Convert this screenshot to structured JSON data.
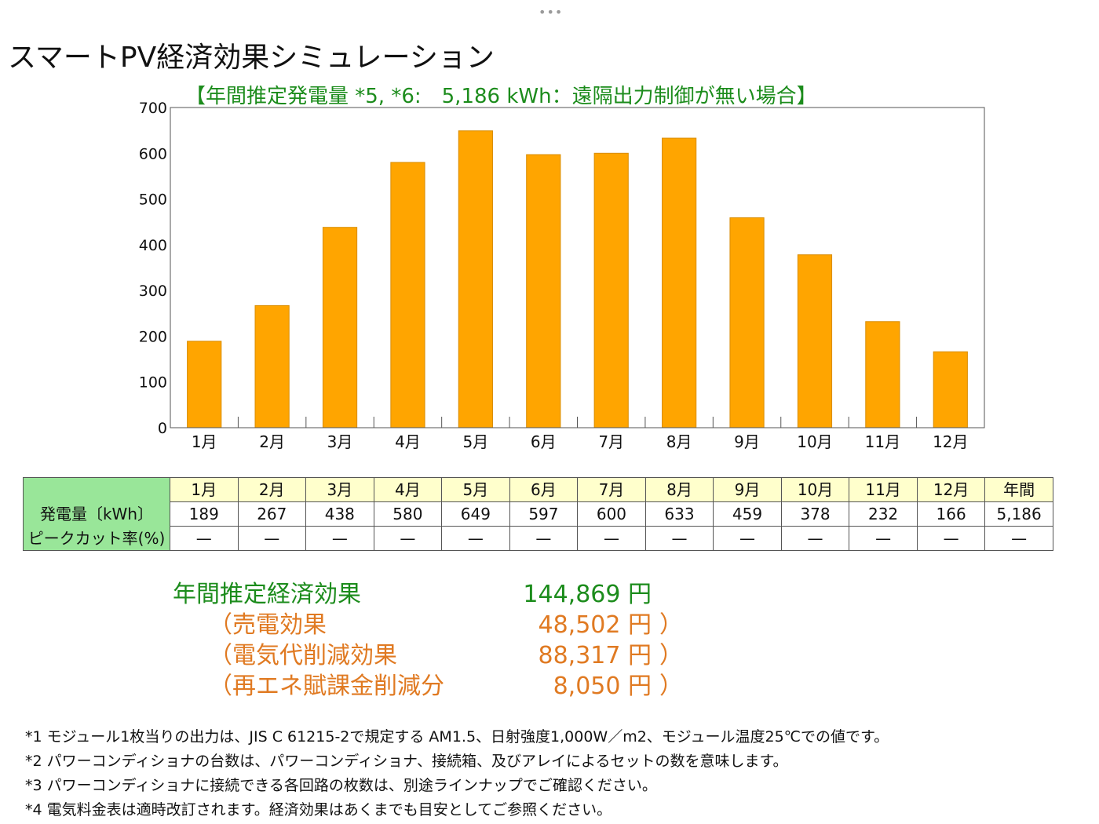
{
  "top_dots": "•••",
  "title": "スマートPV経済効果シミュレーション",
  "chart_data": {
    "type": "bar",
    "title": "【年間推定発電量 *5, *6:　5,186 kWh：遠隔出力制御が無い場合】",
    "categories": [
      "1月",
      "2月",
      "3月",
      "4月",
      "5月",
      "6月",
      "7月",
      "8月",
      "9月",
      "10月",
      "11月",
      "12月"
    ],
    "values": [
      189,
      267,
      438,
      580,
      649,
      597,
      600,
      633,
      459,
      378,
      232,
      166
    ],
    "ylim": [
      0,
      700
    ],
    "yticks": [
      0,
      100,
      200,
      300,
      400,
      500,
      600,
      700
    ],
    "bar_color": "#ffa500",
    "grid": false
  },
  "table": {
    "headers": [
      "1月",
      "2月",
      "3月",
      "4月",
      "5月",
      "6月",
      "7月",
      "8月",
      "9月",
      "10月",
      "11月",
      "12月",
      "年間"
    ],
    "rows": [
      {
        "label": "発電量〔kWh〕",
        "values": [
          "189",
          "267",
          "438",
          "580",
          "649",
          "597",
          "600",
          "633",
          "459",
          "378",
          "232",
          "166",
          "5,186"
        ]
      },
      {
        "label": "ピークカット率(%)",
        "values": [
          "—",
          "—",
          "—",
          "—",
          "—",
          "—",
          "—",
          "—",
          "—",
          "—",
          "—",
          "—",
          "—"
        ]
      }
    ],
    "header_bg": "#ffffcc",
    "label_bg": "#99e699"
  },
  "economy": {
    "total_label": "年間推定経済効果",
    "total_value": "144,869 円",
    "items": [
      {
        "label": "（売電効果",
        "value": "48,502 円",
        "close": "）"
      },
      {
        "label": "（電気代削減効果",
        "value": "88,317 円",
        "close": "）"
      },
      {
        "label": "（再エネ賦課金削減分",
        "value": "8,050 円",
        "close": "）"
      }
    ],
    "green": "#1c8c1c",
    "orange": "#e07a22"
  },
  "notes": [
    "*1 モジュール1枚当りの出力は、JIS C 61215-2で規定する AM1.5、日射強度1,000W／m2、モジュール温度25℃での値です。",
    "*2 パワーコンディショナの台数は、パワーコンディショナ、接続箱、及びアレイによるセットの数を意味します。",
    "*3 パワーコンディショナに接続できる各回路の枚数は、別途ラインナップでご確認ください。",
    "*4 電気料金表は適時改訂されます。経済効果はあくまでも目安としてご参照ください。"
  ]
}
